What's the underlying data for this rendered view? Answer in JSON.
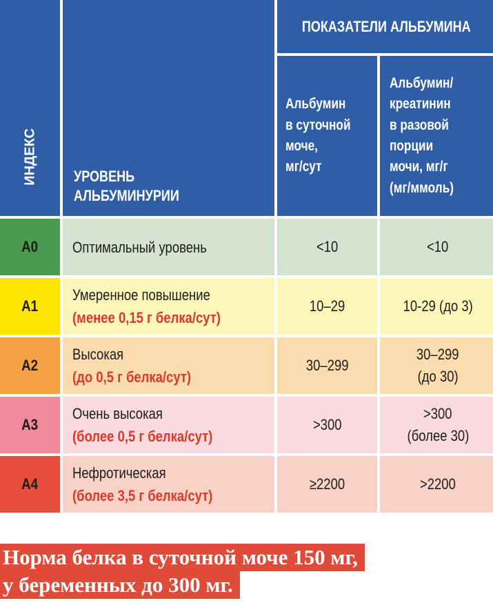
{
  "header": {
    "index_label": "ИНДЕКС",
    "level_label": "УРОВЕНЬ\nАЛЬБУМИНУРИИ",
    "group_label": "ПОКАЗАТЕЛИ АЛЬБУМИНА",
    "col_daily": "Альбумин\nв суточной\nмоче,\nмг/сут",
    "col_ratio": "Альбумин/\nкреатинин\nв разовой\nпорции\nмочи, мг/г\n(мг/ммоль)"
  },
  "rows": [
    {
      "index": "А0",
      "title": "Оптимальный уровень",
      "note": "",
      "daily": "<10",
      "ratio": "<10",
      "ratio_extra": "",
      "colors": {
        "index_bg": "#4a9b4f",
        "row_bg": "#d3e3cf"
      }
    },
    {
      "index": "А1",
      "title": "Умеренное повышение",
      "note": "(менее 0,15 г белка/сут)",
      "daily": "10–29",
      "ratio": "10-29 (до 3)",
      "ratio_extra": "",
      "colors": {
        "index_bg": "#ffe600",
        "row_bg": "#fdf6b9"
      }
    },
    {
      "index": "А2",
      "title": "Высокая",
      "note": "(до 0,5 г белка/сут)",
      "daily": "30–299",
      "ratio": "30–299",
      "ratio_extra": "(до 30)",
      "colors": {
        "index_bg": "#f5a245",
        "row_bg": "#fbdcae"
      }
    },
    {
      "index": "А3",
      "title": "Очень высокая",
      "note": "(более 0,5 г белка/сут)",
      "daily": ">300",
      "ratio": ">300",
      "ratio_extra": "(более 30)",
      "colors": {
        "index_bg": "#f2899a",
        "row_bg": "#f9dade"
      }
    },
    {
      "index": "А4",
      "title": "Нефротическая",
      "note": "(более 3,5 г белка/сут)",
      "daily": "≥2200",
      "ratio": ">2200",
      "ratio_extra": "",
      "colors": {
        "index_bg": "#e94e3c",
        "row_bg": "#f8d2c6"
      }
    }
  ],
  "footer": {
    "line1": "Норма белка в суточной моче 150 мг,",
    "line2": "у беременных до 300 мг."
  },
  "colors": {
    "header_bg": "#2f5ea6",
    "note_red": "#d93a2b",
    "footer_bg": "#e04a38"
  }
}
